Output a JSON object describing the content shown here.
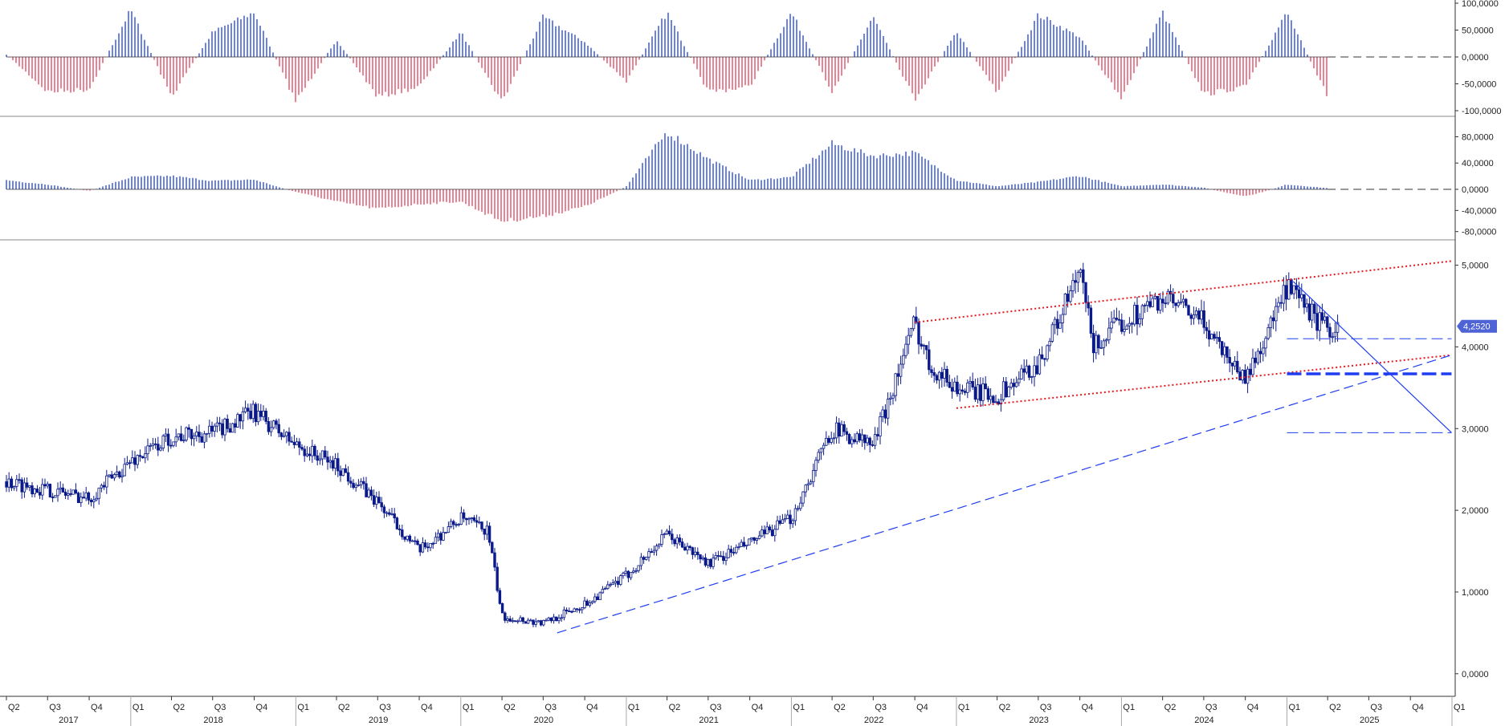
{
  "chart_data": {
    "type": "candlestick",
    "colors": {
      "up": "#1c3fd6",
      "down": "#e0405a",
      "candle": "#0b1a8a",
      "trend_red": "#e8191e",
      "trend_blue": "#1f3df0",
      "badge": "#4e63d6",
      "axis": "#333333",
      "separator": "#888888",
      "zero_line": "#333333"
    },
    "x_axis": {
      "quarter_labels": [
        "Q2",
        "Q3",
        "Q4",
        "Q1",
        "Q2",
        "Q3",
        "Q4",
        "Q1",
        "Q2",
        "Q3",
        "Q4",
        "Q1",
        "Q2",
        "Q3",
        "Q4",
        "Q1",
        "Q2",
        "Q3",
        "Q4",
        "Q1",
        "Q2",
        "Q3",
        "Q4",
        "Q1",
        "Q2",
        "Q3",
        "Q4",
        "Q1",
        "Q2",
        "Q3",
        "Q4",
        "Q1",
        "Q2",
        "Q3",
        "Q4",
        "Q1"
      ],
      "year_labels": [
        "2017",
        "2018",
        "2019",
        "2020",
        "2021",
        "2022",
        "2023",
        "2024",
        "2025"
      ],
      "range": [
        "2017-04-01",
        "2026-01-01"
      ]
    },
    "panels": [
      {
        "name": "oscillator-1",
        "type": "histogram",
        "ylim": [
          -100000,
          100000
        ],
        "ticks": [
          100000,
          50000,
          0,
          -50000,
          -100000
        ],
        "tick_labels": [
          "100,0000",
          "50,0000",
          "0,0000",
          "-50,0000",
          "-100,0000"
        ],
        "dashed_zero_from": "2025-04-01",
        "x": [
          "2017-04",
          "2017-07",
          "2017-10",
          "2018-01",
          "2018-04",
          "2018-07",
          "2018-10",
          "2019-01",
          "2019-04",
          "2019-07",
          "2019-10",
          "2020-01",
          "2020-04",
          "2020-07",
          "2020-10",
          "2021-01",
          "2021-04",
          "2021-07",
          "2021-10",
          "2022-01",
          "2022-04",
          "2022-07",
          "2022-10",
          "2023-01",
          "2023-04",
          "2023-07",
          "2023-10",
          "2024-01",
          "2024-04",
          "2024-07",
          "2024-10",
          "2025-01",
          "2025-04"
        ],
        "y": [
          5000,
          -70000,
          -65000,
          95000,
          -80000,
          50000,
          90000,
          -90000,
          35000,
          -80000,
          -60000,
          50000,
          -90000,
          80000,
          30000,
          -50000,
          90000,
          -70000,
          -60000,
          90000,
          -70000,
          80000,
          -85000,
          50000,
          -70000,
          85000,
          40000,
          -85000,
          90000,
          -75000,
          -60000,
          90000,
          -80000
        ]
      },
      {
        "name": "oscillator-2",
        "type": "histogram",
        "ylim": [
          -85000,
          105000
        ],
        "ticks": [
          80000,
          40000,
          0,
          -40000,
          -80000
        ],
        "tick_labels": [
          "80,0000",
          "40,0000",
          "0,0000",
          "-40,0000",
          "-80,0000"
        ],
        "dashed_zero_from": "2025-04-01",
        "x": [
          "2017-04",
          "2017-07",
          "2017-10",
          "2018-01",
          "2018-04",
          "2018-07",
          "2018-10",
          "2019-01",
          "2019-04",
          "2019-07",
          "2019-10",
          "2020-01",
          "2020-04",
          "2020-07",
          "2020-10",
          "2021-01",
          "2021-04",
          "2021-07",
          "2021-10",
          "2022-01",
          "2022-04",
          "2022-07",
          "2022-10",
          "2023-01",
          "2023-04",
          "2023-07",
          "2023-10",
          "2024-01",
          "2024-04",
          "2024-07",
          "2024-10",
          "2025-01",
          "2025-04"
        ],
        "y": [
          15000,
          8000,
          -3000,
          20000,
          22000,
          14000,
          16000,
          -5000,
          -25000,
          -40000,
          -30000,
          -25000,
          -65000,
          -55000,
          -35000,
          5000,
          95000,
          50000,
          15000,
          20000,
          75000,
          55000,
          60000,
          15000,
          5000,
          12000,
          22000,
          5000,
          8000,
          3000,
          -15000,
          8000,
          2000
        ]
      },
      {
        "name": "price",
        "type": "candlestick",
        "ylim": [
          -0.1,
          5.3
        ],
        "ticks": [
          5,
          4,
          3,
          2,
          1,
          0
        ],
        "tick_labels": [
          "5,0000",
          "4,0000",
          "3,0000",
          "2,0000",
          "1,0000",
          "0,0000"
        ],
        "last_price": 4.252,
        "last_price_label": "4,2520",
        "x": [
          "2017-04",
          "2017-07",
          "2017-10",
          "2018-01",
          "2018-04",
          "2018-07",
          "2018-10",
          "2019-01",
          "2019-04",
          "2019-07",
          "2019-10",
          "2020-01",
          "2020-03",
          "2020-04",
          "2020-07",
          "2020-10",
          "2021-01",
          "2021-04",
          "2021-07",
          "2021-10",
          "2022-01",
          "2022-04",
          "2022-07",
          "2022-10",
          "2022-11",
          "2023-01",
          "2023-04",
          "2023-07",
          "2023-10",
          "2023-11",
          "2024-01",
          "2024-04",
          "2024-07",
          "2024-10",
          "2025-01",
          "2025-04"
        ],
        "y": [
          2.35,
          2.25,
          2.15,
          2.6,
          2.9,
          2.95,
          3.2,
          2.8,
          2.55,
          2.1,
          1.5,
          1.9,
          1.75,
          0.7,
          0.62,
          0.85,
          1.2,
          1.7,
          1.35,
          1.6,
          1.9,
          3.0,
          2.8,
          4.3,
          3.8,
          3.5,
          3.4,
          3.8,
          4.9,
          4.0,
          4.3,
          4.6,
          4.3,
          3.6,
          4.7,
          4.2
        ]
      }
    ],
    "trend_lines": [
      {
        "name": "upper-channel",
        "style": "dotted",
        "color": "red",
        "points": [
          [
            "2022-10-01",
            4.3
          ],
          [
            "2025-12-31",
            5.05
          ]
        ]
      },
      {
        "name": "lower-channel",
        "style": "dotted",
        "color": "red",
        "points": [
          [
            "2023-01-01",
            3.25
          ],
          [
            "2025-12-31",
            3.9
          ]
        ]
      },
      {
        "name": "long-support",
        "style": "dashed",
        "color": "blue",
        "points": [
          [
            "2020-08-01",
            0.5
          ],
          [
            "2025-12-31",
            3.9
          ]
        ]
      },
      {
        "name": "down-trend",
        "style": "solid",
        "color": "blue",
        "points": [
          [
            "2025-01-15",
            4.8
          ],
          [
            "2025-12-31",
            2.95
          ]
        ]
      },
      {
        "name": "level-4.1",
        "style": "dashed-thin",
        "color": "blue",
        "points": [
          [
            "2025-01-01",
            4.1
          ],
          [
            "2025-12-31",
            4.1
          ]
        ]
      },
      {
        "name": "level-3.67",
        "style": "dashed-thick",
        "color": "blue",
        "points": [
          [
            "2025-01-01",
            3.67
          ],
          [
            "2025-12-31",
            3.67
          ]
        ]
      },
      {
        "name": "level-2.95",
        "style": "dashed-thin",
        "color": "blue",
        "points": [
          [
            "2025-01-01",
            2.95
          ],
          [
            "2025-12-31",
            2.95
          ]
        ]
      }
    ]
  }
}
